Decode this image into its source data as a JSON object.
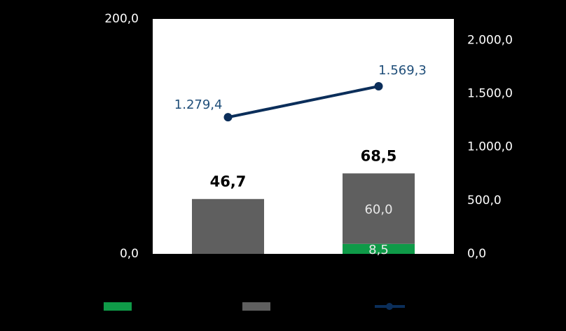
{
  "chart_data": {
    "type": "bar",
    "categories": [
      null,
      null
    ],
    "series": [
      {
        "color": "#0f9a48",
        "values": [
          null,
          8.5
        ],
        "value_labels": [
          null,
          "8,5"
        ]
      },
      {
        "color": "#5f5f5f",
        "values": [
          46.7,
          60.0
        ],
        "value_labels": [
          null,
          "60,0"
        ]
      },
      {
        "type": "line",
        "axis": "y2",
        "color": "#0b2e5a",
        "values": [
          1279.4,
          1569.3
        ],
        "value_labels": [
          "1.279,4",
          "1.569,3"
        ]
      }
    ],
    "totals": {
      "values": [
        46.7,
        68.5
      ],
      "value_labels": [
        "46,7",
        "68,5"
      ]
    },
    "ylim": [
      0,
      200
    ],
    "yticks": [
      {
        "value": 0,
        "label": "0,0"
      },
      {
        "value": 200,
        "label": "200,0"
      }
    ],
    "y2lim": [
      0,
      2200
    ],
    "y2ticks": [
      {
        "value": 0,
        "label": "0,0"
      },
      {
        "value": 500,
        "label": "500,0"
      },
      {
        "value": 1000,
        "label": "1.000,0"
      },
      {
        "value": 1500,
        "label": "1.500,0"
      },
      {
        "value": 2000,
        "label": "2.000,0"
      }
    ],
    "grid": false
  }
}
